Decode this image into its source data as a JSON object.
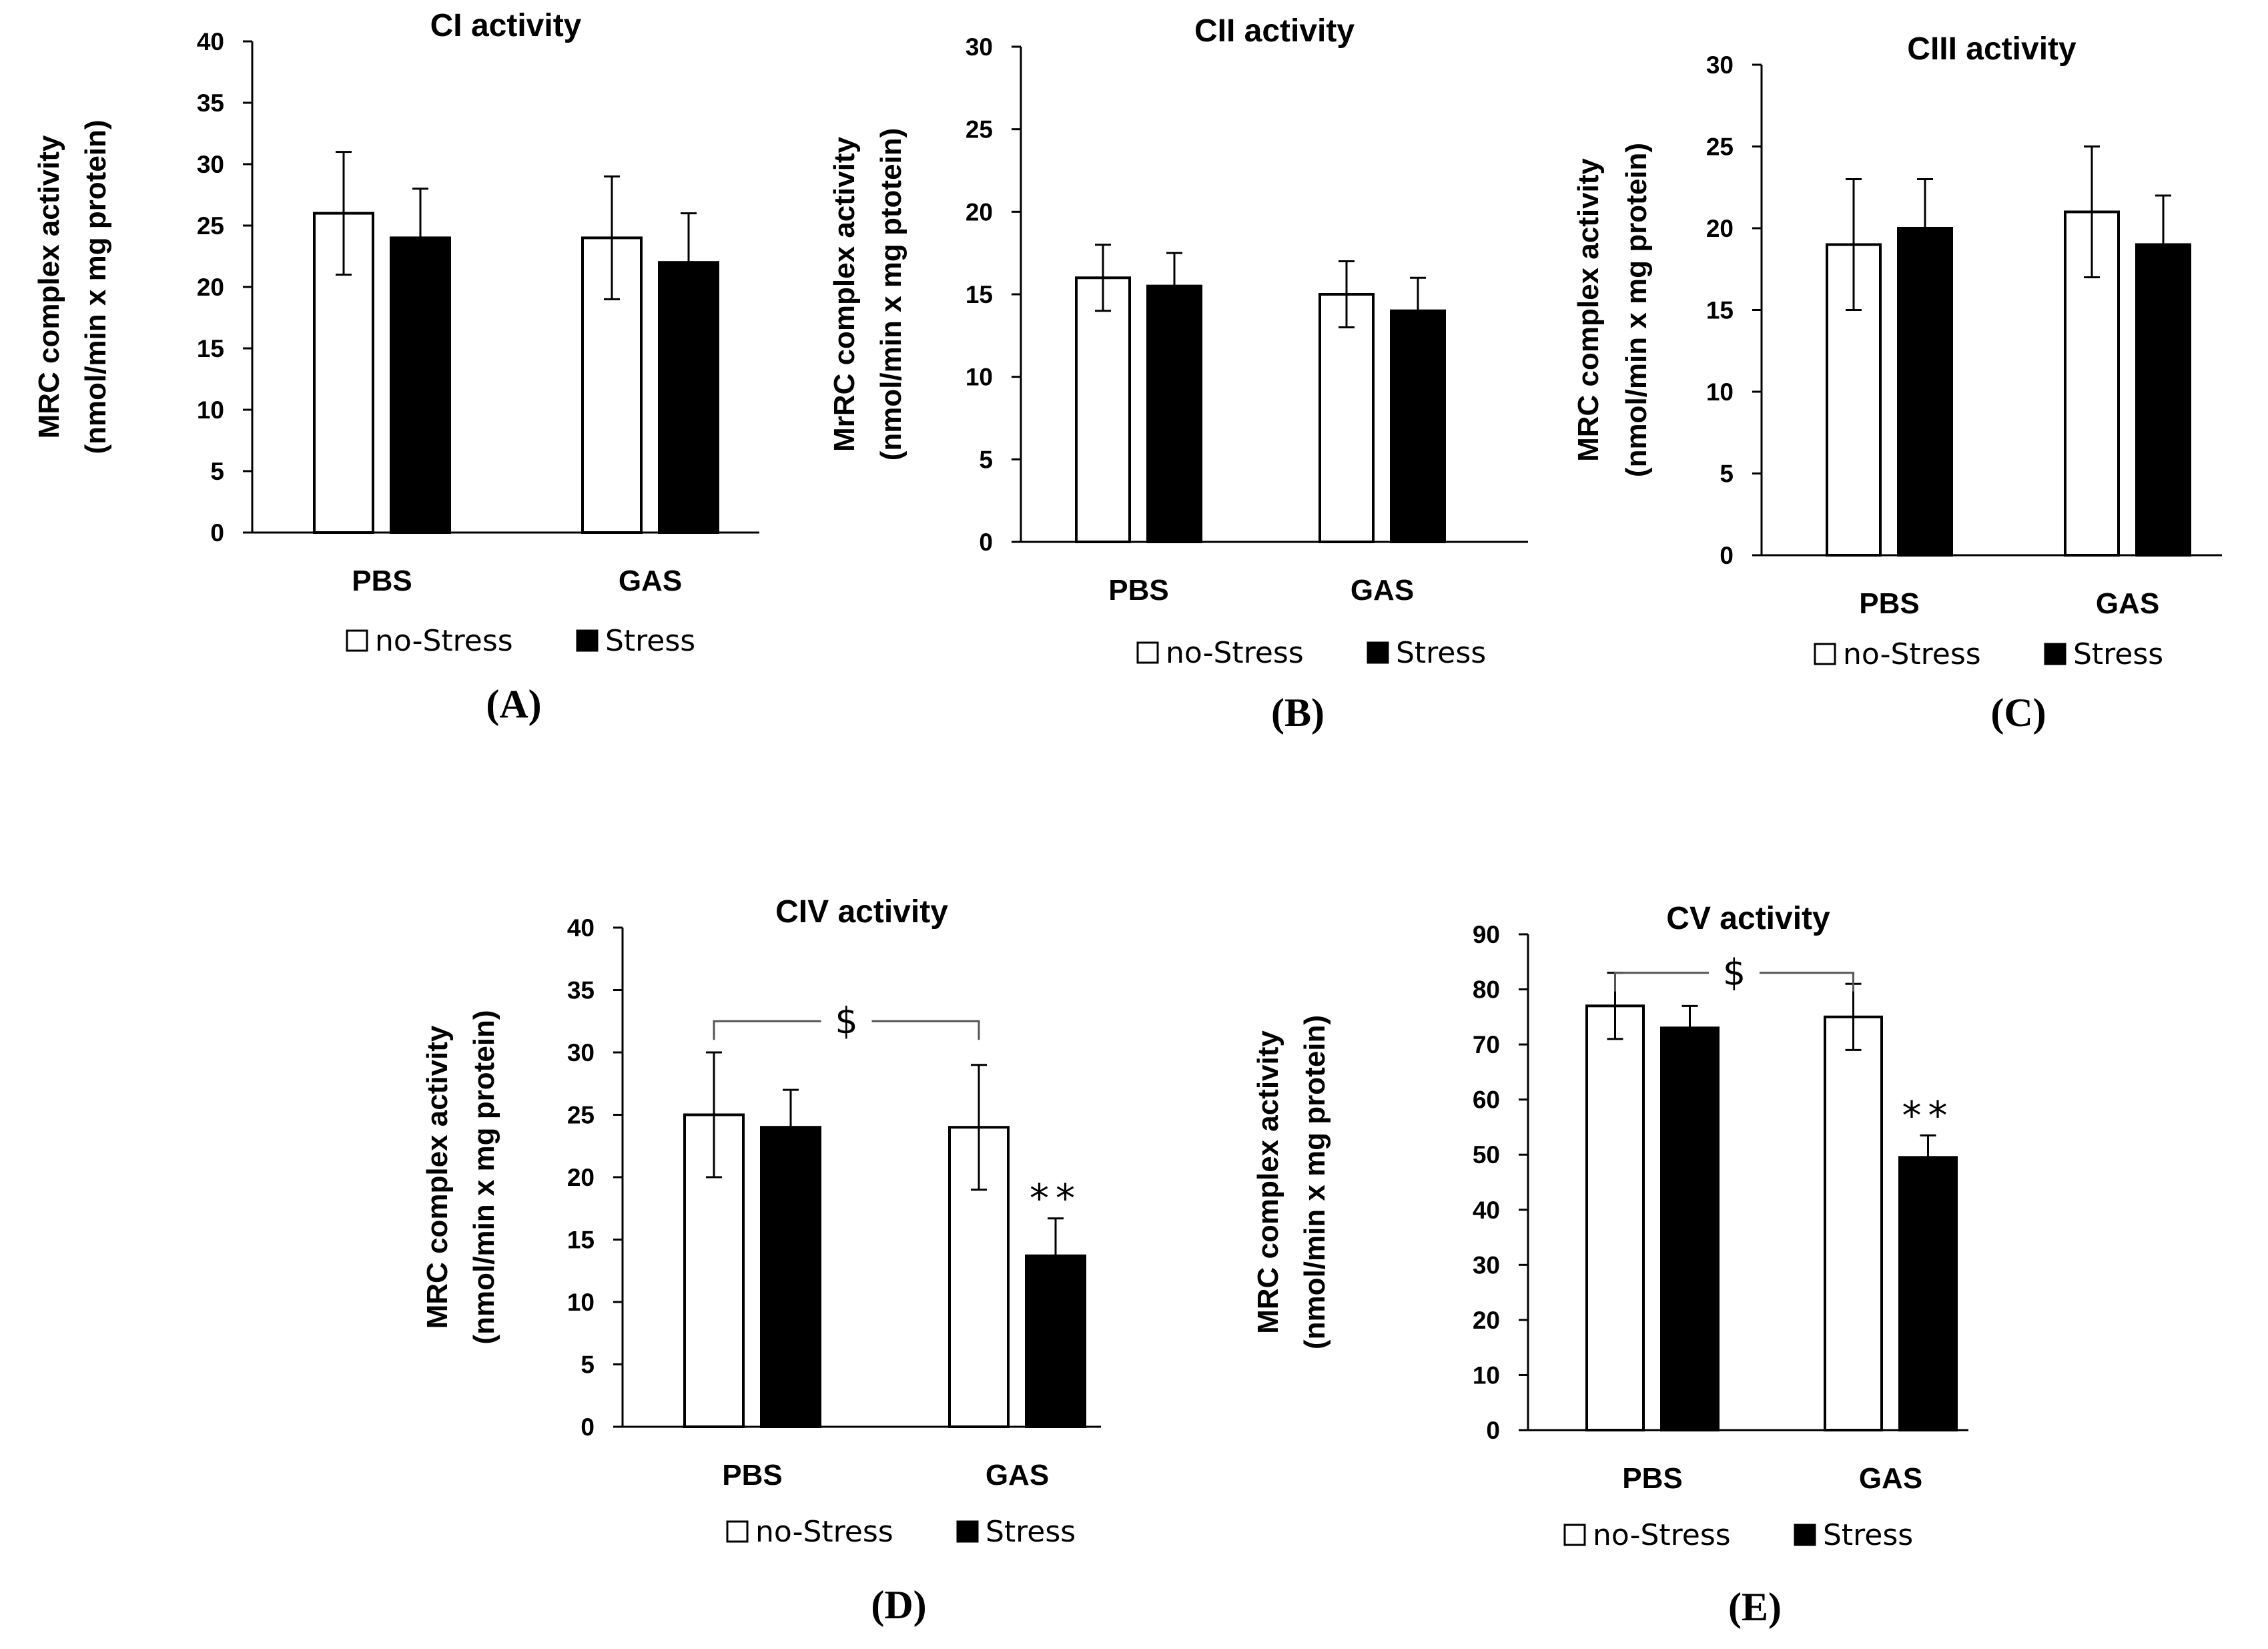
{
  "chart_data": [
    {
      "type": "bar",
      "panel": "(A)",
      "title": "CI activity",
      "ylabel": [
        "MRC complex activity",
        "(nmol/min x mg protein)"
      ],
      "categories": [
        "PBS",
        "GAS"
      ],
      "ylim": [
        0,
        40
      ],
      "yticks": [
        0,
        5,
        10,
        15,
        20,
        25,
        30,
        35,
        40
      ],
      "series": [
        {
          "name": "no-Stress",
          "values": [
            26,
            24
          ],
          "errors": [
            5,
            5
          ]
        },
        {
          "name": "Stress",
          "values": [
            24,
            22
          ],
          "errors": [
            4,
            4
          ]
        }
      ],
      "annotations": []
    },
    {
      "type": "bar",
      "panel": "(B)",
      "title": "CII activity",
      "ylabel": [
        "MrRC complex activity",
        "(nmol/min x mg ptotein)"
      ],
      "categories": [
        "PBS",
        "GAS"
      ],
      "ylim": [
        0,
        30
      ],
      "yticks": [
        0,
        5,
        10,
        15,
        20,
        25,
        30
      ],
      "series": [
        {
          "name": "no-Stress",
          "values": [
            16,
            15
          ],
          "errors": [
            2,
            2
          ]
        },
        {
          "name": "Stress",
          "values": [
            15.5,
            14
          ],
          "errors": [
            2,
            2
          ]
        }
      ],
      "annotations": []
    },
    {
      "type": "bar",
      "panel": "(C)",
      "title": "CIII activity",
      "ylabel": [
        "MRC complex activity",
        "(nmol/min x mg protein)"
      ],
      "categories": [
        "PBS",
        "GAS"
      ],
      "ylim": [
        0,
        30
      ],
      "yticks": [
        0,
        5,
        10,
        15,
        20,
        25,
        30
      ],
      "series": [
        {
          "name": "no-Stress",
          "values": [
            19,
            21
          ],
          "errors": [
            4,
            4
          ]
        },
        {
          "name": "Stress",
          "values": [
            20,
            19
          ],
          "errors": [
            3,
            3
          ]
        }
      ],
      "annotations": []
    },
    {
      "type": "bar",
      "panel": "(D)",
      "title": "CIV activity",
      "ylabel": [
        "MRC complex activity",
        "(nmol/min x mg protein)"
      ],
      "categories": [
        "PBS",
        "GAS"
      ],
      "ylim": [
        0,
        40
      ],
      "yticks": [
        0,
        5,
        10,
        15,
        20,
        25,
        30,
        35,
        40
      ],
      "series": [
        {
          "name": "no-Stress",
          "values": [
            25,
            24
          ],
          "errors": [
            5,
            5
          ]
        },
        {
          "name": "Stress",
          "values": [
            24,
            13.7
          ],
          "errors": [
            3,
            3
          ]
        }
      ],
      "annotations": [
        {
          "text": "**",
          "category": "GAS",
          "series": "Stress"
        },
        {
          "text": "$",
          "bracket": [
            "PBS",
            "GAS"
          ],
          "at": 32.5
        }
      ]
    },
    {
      "type": "bar",
      "panel": "(E)",
      "title": "CV activity",
      "ylabel": [
        "MRC complex activity",
        "(nmol/min x mg protein)"
      ],
      "categories": [
        "PBS",
        "GAS"
      ],
      "ylim": [
        0,
        90
      ],
      "yticks": [
        0,
        10,
        20,
        30,
        40,
        50,
        60,
        70,
        80,
        90
      ],
      "series": [
        {
          "name": "no-Stress",
          "values": [
            77,
            75
          ],
          "errors": [
            6,
            6
          ]
        },
        {
          "name": "Stress",
          "values": [
            73,
            49.5
          ],
          "errors": [
            4,
            4
          ]
        }
      ],
      "annotations": [
        {
          "text": "**",
          "category": "GAS",
          "series": "Stress"
        },
        {
          "text": "$",
          "bracket": [
            "PBS",
            "GAS"
          ],
          "at": 83
        }
      ]
    }
  ]
}
